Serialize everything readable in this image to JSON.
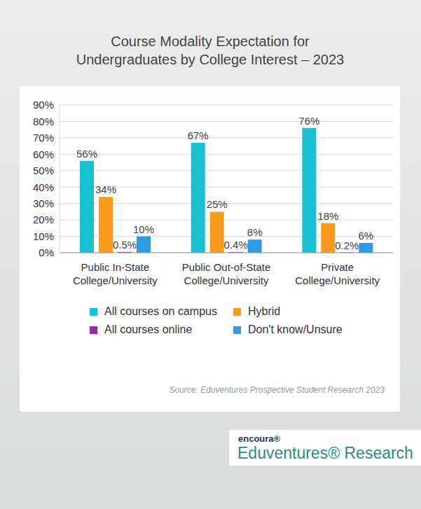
{
  "chart_data": {
    "type": "bar",
    "title": "Course Modality Expectation for Undergraduates by College Interest – 2023",
    "categories": [
      "Public In-State College/University",
      "Public Out-of-State College/University",
      "Private College/University"
    ],
    "series": [
      {
        "name": "All courses on campus",
        "color": "#19bfd3",
        "values": [
          56,
          67,
          76
        ],
        "value_labels": [
          "56%",
          "67%",
          "76%"
        ]
      },
      {
        "name": "Hybrid",
        "color": "#f89a1c",
        "values": [
          34,
          25,
          18
        ],
        "value_labels": [
          "34%",
          "25%",
          "18%"
        ]
      },
      {
        "name": "All courses online",
        "color": "#8e2c9c",
        "values": [
          0.5,
          0.4,
          0.2
        ],
        "value_labels": [
          "0.5%",
          "0.4%",
          "0.2%"
        ]
      },
      {
        "name": "Don't know/Unsure",
        "color": "#2d9be6",
        "values": [
          10,
          8,
          6
        ],
        "value_labels": [
          "10%",
          "8%",
          "6%"
        ]
      }
    ],
    "ylim": [
      0,
      90
    ],
    "yticks": [
      {
        "value": 0,
        "label": "0%"
      },
      {
        "value": 10,
        "label": "10%"
      },
      {
        "value": 20,
        "label": "20%"
      },
      {
        "value": 30,
        "label": "30%"
      },
      {
        "value": 40,
        "label": "40%"
      },
      {
        "value": 50,
        "label": "50%"
      },
      {
        "value": 60,
        "label": "60%"
      },
      {
        "value": 70,
        "label": "70%"
      },
      {
        "value": 80,
        "label": "80%"
      },
      {
        "value": 90,
        "label": "90%"
      }
    ],
    "grid": true,
    "data_labels": true,
    "legend": "bottom",
    "source": "Source: Eduventures Prospective Student Research 2023",
    "logo": {
      "brand": "encoura®",
      "name": "Eduventures® Research"
    }
  }
}
